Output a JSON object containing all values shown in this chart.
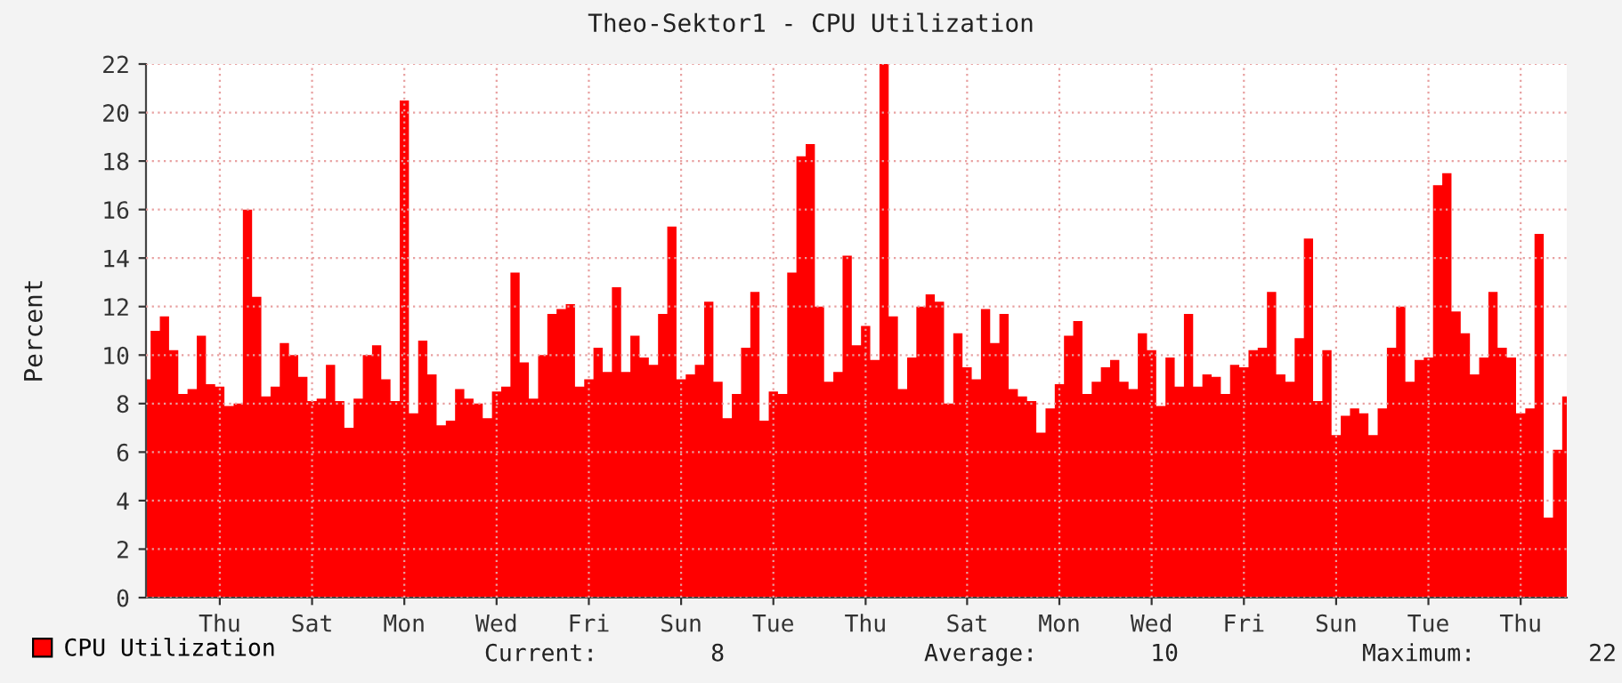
{
  "chart_data": {
    "type": "area",
    "title": "Theo-Sektor1 - CPU Utilization",
    "ylabel": "Percent",
    "categories": [
      null,
      null,
      null,
      null,
      null,
      null,
      null,
      null,
      "Thu",
      null,
      null,
      null,
      null,
      null,
      null,
      null,
      null,
      null,
      "Sat",
      null,
      null,
      null,
      null,
      null,
      null,
      null,
      null,
      null,
      "Mon",
      null,
      null,
      null,
      null,
      null,
      null,
      null,
      null,
      null,
      "Wed",
      null,
      null,
      null,
      null,
      null,
      null,
      null,
      null,
      null,
      "Fri",
      null,
      null,
      null,
      null,
      null,
      null,
      null,
      null,
      null,
      "Sun",
      null,
      null,
      null,
      null,
      null,
      null,
      null,
      null,
      null,
      "Tue",
      null,
      null,
      null,
      null,
      null,
      null,
      null,
      null,
      null,
      "Thu",
      null,
      null,
      null,
      null,
      null,
      null,
      null,
      null,
      null,
      null,
      "Sat",
      null,
      null,
      null,
      null,
      null,
      null,
      null,
      null,
      null,
      "Mon",
      null,
      null,
      null,
      null,
      null,
      null,
      null,
      null,
      null,
      "Wed",
      null,
      null,
      null,
      null,
      null,
      null,
      null,
      null,
      null,
      "Fri",
      null,
      null,
      null,
      null,
      null,
      null,
      null,
      null,
      null,
      "Sun",
      null,
      null,
      null,
      null,
      null,
      null,
      null,
      null,
      null,
      "Tue",
      null,
      null,
      null,
      null,
      null,
      null,
      null,
      null,
      null,
      "Thu",
      null,
      null,
      null,
      null,
      null
    ],
    "series": [
      {
        "name": "CPU Utilization",
        "color": "#ff0000",
        "values": [
          9.0,
          11.0,
          11.6,
          10.2,
          8.4,
          8.6,
          10.8,
          8.8,
          8.7,
          7.9,
          8.0,
          16.0,
          12.4,
          8.3,
          8.7,
          10.5,
          10.0,
          9.1,
          8.1,
          8.2,
          9.6,
          8.1,
          7.0,
          8.2,
          10.0,
          10.4,
          9.0,
          8.1,
          20.5,
          7.6,
          10.6,
          9.2,
          7.1,
          7.3,
          8.6,
          8.2,
          8.0,
          7.4,
          8.5,
          8.7,
          13.4,
          9.7,
          8.2,
          10.0,
          11.7,
          11.9,
          12.1,
          8.7,
          9.0,
          10.3,
          9.3,
          12.8,
          9.3,
          10.8,
          9.9,
          9.6,
          11.7,
          15.3,
          9.0,
          9.2,
          9.6,
          12.2,
          8.9,
          7.4,
          8.4,
          10.3,
          12.6,
          7.3,
          8.5,
          8.4,
          13.4,
          18.2,
          18.7,
          12.0,
          8.9,
          9.3,
          14.1,
          10.4,
          11.2,
          9.8,
          22.0,
          11.6,
          8.6,
          9.9,
          12.0,
          12.5,
          12.2,
          8.0,
          10.9,
          9.5,
          9.0,
          11.9,
          10.5,
          11.7,
          8.6,
          8.3,
          8.1,
          6.8,
          7.8,
          8.8,
          10.8,
          11.4,
          8.4,
          8.9,
          9.5,
          9.8,
          8.9,
          8.6,
          10.9,
          10.2,
          7.9,
          9.9,
          8.7,
          11.7,
          8.7,
          9.2,
          9.1,
          8.4,
          9.6,
          9.5,
          10.2,
          10.3,
          12.6,
          9.2,
          8.9,
          10.7,
          14.8,
          8.1,
          10.2,
          6.7,
          7.5,
          7.8,
          7.6,
          6.7,
          7.8,
          10.3,
          12.0,
          8.9,
          9.8,
          9.9,
          17.0,
          17.5,
          11.8,
          10.9,
          9.2,
          9.9,
          12.6,
          10.3,
          9.9,
          7.6,
          7.8,
          15.0,
          3.3,
          6.1,
          8.3
        ]
      }
    ],
    "ylim": [
      0,
      22
    ],
    "yticks": [
      0,
      2,
      4,
      6,
      8,
      10,
      12,
      14,
      16,
      18,
      20,
      22
    ],
    "grid": true,
    "legend": "bottom left",
    "annotations": [
      "Current:        8",
      "Average:        10",
      "Maximum:        22"
    ]
  }
}
